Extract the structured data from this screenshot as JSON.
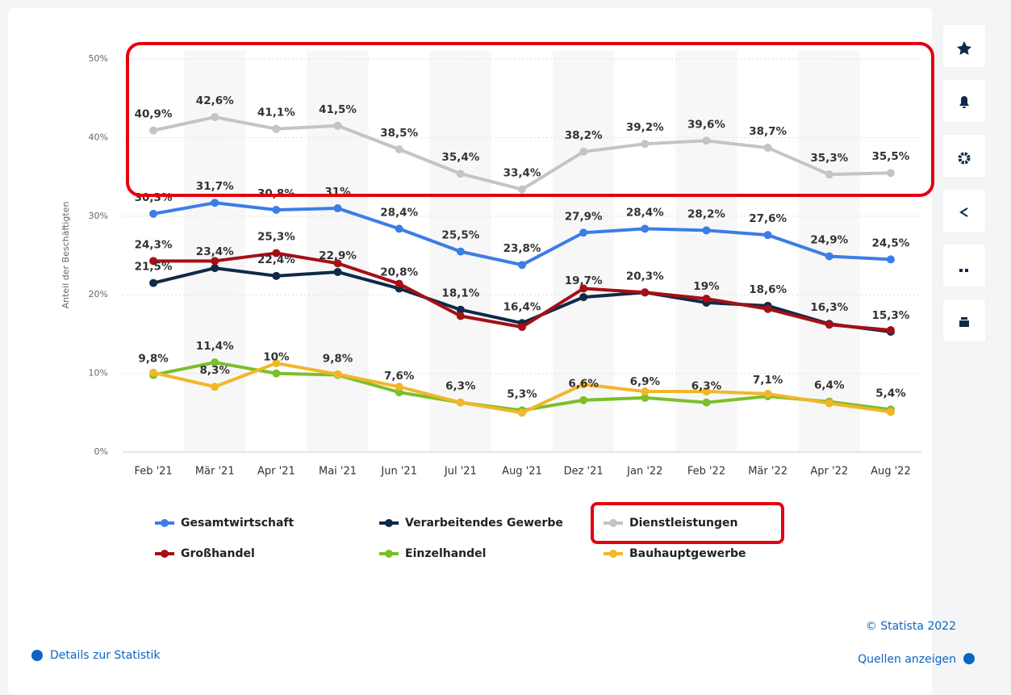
{
  "chart_data": {
    "type": "line",
    "categories": [
      "Feb '21",
      "Mär '21",
      "Apr '21",
      "Mai '21",
      "Jun '21",
      "Jul '21",
      "Aug '21",
      "Dez '21",
      "Jan '22",
      "Feb '22",
      "Mär '22",
      "Apr '22",
      "Aug '22"
    ],
    "y_label": "Anteil der Beschäftigten",
    "ylim": [
      0,
      50
    ],
    "yticks": [
      {
        "value": 0,
        "label": "0%"
      },
      {
        "value": 10,
        "label": "10%"
      },
      {
        "value": 20,
        "label": "20%"
      },
      {
        "value": 30,
        "label": "30%"
      },
      {
        "value": 40,
        "label": "40%"
      },
      {
        "value": 50,
        "label": "50%"
      }
    ],
    "grid": true,
    "series": [
      {
        "name": "Gesamtwirtschaft",
        "color": "#3c7de6",
        "values": [
          30.3,
          31.7,
          30.8,
          31,
          28.4,
          25.5,
          23.8,
          27.9,
          28.4,
          28.2,
          27.6,
          24.9,
          24.5
        ],
        "value_labels": [
          "30,3%",
          "31,7%",
          "30,8%",
          "31%",
          "28,4%",
          "25,5%",
          "23,8%",
          "27,9%",
          "28,4%",
          "28,2%",
          "27,6%",
          "24,9%",
          "24,5%"
        ]
      },
      {
        "name": "Verarbeitendes Gewerbe",
        "color": "#0f2a47",
        "values": [
          21.5,
          23.4,
          22.4,
          22.9,
          20.8,
          18.1,
          16.4,
          19.7,
          20.3,
          19,
          18.6,
          16.3,
          15.3
        ],
        "value_labels": [
          "21,5%",
          "23,4%",
          "22,4%",
          "22,9%",
          "20,8%",
          "18,1%",
          "16,4%",
          "19,7%",
          "20,3%",
          "19%",
          "18,6%",
          "16,3%",
          "15,3%"
        ]
      },
      {
        "name": "Dienstleistungen",
        "color": "#c4c4c4",
        "values": [
          40.9,
          42.6,
          41.1,
          41.5,
          38.5,
          35.4,
          33.4,
          38.2,
          39.2,
          39.6,
          38.7,
          35.3,
          35.5
        ],
        "value_labels": [
          "40,9%",
          "42,6%",
          "41,1%",
          "41,5%",
          "38,5%",
          "35,4%",
          "33,4%",
          "38,2%",
          "39,2%",
          "39,6%",
          "38,7%",
          "35,3%",
          "35,5%"
        ]
      },
      {
        "name": "Großhandel",
        "color": "#a50f15",
        "values": [
          24.3,
          24.3,
          25.3,
          24.0,
          21.4,
          17.3,
          15.9,
          20.8,
          20.3,
          19.5,
          18.2,
          16.2,
          15.5
        ],
        "value_labels": [
          "24,3%",
          null,
          "25,3%",
          null,
          null,
          null,
          null,
          null,
          null,
          null,
          null,
          null,
          null
        ]
      },
      {
        "name": "Einzelhandel",
        "color": "#7cbf2a",
        "values": [
          9.8,
          11.4,
          10,
          9.8,
          7.6,
          6.3,
          5.3,
          6.6,
          6.9,
          6.3,
          7.1,
          6.4,
          5.4
        ],
        "value_labels": [
          "9,8%",
          "11,4%",
          "10%",
          "9,8%",
          "7,6%",
          "6,3%",
          "5,3%",
          "6,6%",
          "6,9%",
          "6,3%",
          "7,1%",
          "6,4%",
          "5,4%"
        ]
      },
      {
        "name": "Bauhauptgewerbe",
        "color": "#f2b629",
        "values": [
          10.1,
          8.3,
          11.3,
          9.9,
          8.3,
          6.3,
          5.0,
          8.6,
          7.7,
          7.7,
          7.4,
          6.2,
          5.1
        ],
        "value_labels": [
          null,
          "8,3%",
          null,
          null,
          null,
          null,
          null,
          null,
          null,
          null,
          null,
          null,
          null
        ]
      }
    ]
  },
  "footer": {
    "copyright": "© Statista 2022",
    "details": "Details zur Statistik",
    "sources": "Quellen anzeigen"
  }
}
